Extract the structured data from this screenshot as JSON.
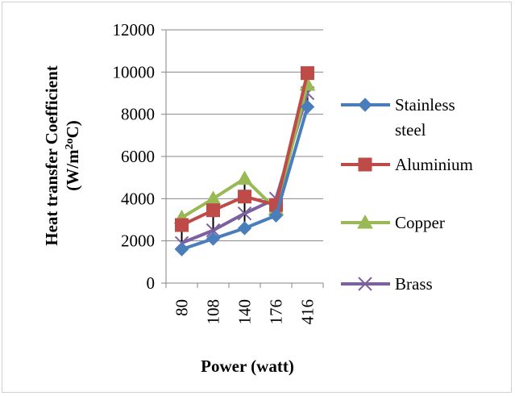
{
  "chart_data": {
    "type": "line",
    "xlabel": "Power (watt)",
    "ylabel_line1": "Heat transfer Coefficient",
    "ylabel_line2_prefix": "(W/m",
    "ylabel_line2_sup": "2o",
    "ylabel_line2_suffix": "C)",
    "categories": [
      "80",
      "108",
      "140",
      "176",
      "416"
    ],
    "ylim": [
      0,
      12000
    ],
    "yticks": [
      "0",
      "2000",
      "4000",
      "6000",
      "8000",
      "10000",
      "12000"
    ],
    "grid": "horizontal",
    "legend_position": "right",
    "series": [
      {
        "name": "Stainless steel",
        "name_line1": "Stainless",
        "name_line2": "steel",
        "marker": "diamond",
        "color": "#4a7ebb",
        "values": [
          1600,
          2100,
          2600,
          3200,
          8350
        ]
      },
      {
        "name": "Aluminium",
        "marker": "square",
        "color": "#be4b48",
        "values": [
          2750,
          3450,
          4100,
          3700,
          9950
        ]
      },
      {
        "name": "Copper",
        "marker": "triangle",
        "color": "#98b954",
        "values": [
          3100,
          4000,
          4950,
          3500,
          9400
        ]
      },
      {
        "name": "Brass",
        "marker": "x",
        "color": "#7d60a0",
        "values": [
          1900,
          2500,
          3300,
          4000,
          9000
        ]
      }
    ],
    "error_bars": [
      {
        "category": "80",
        "low": 1700,
        "high": 3100
      },
      {
        "category": "108",
        "low": 2150,
        "high": 3950
      },
      {
        "category": "140",
        "low": 2650,
        "high": 5000
      },
      {
        "category": "176",
        "low": 3150,
        "high": 4050
      },
      {
        "category": "416",
        "low": 8400,
        "high": 9950
      }
    ]
  }
}
